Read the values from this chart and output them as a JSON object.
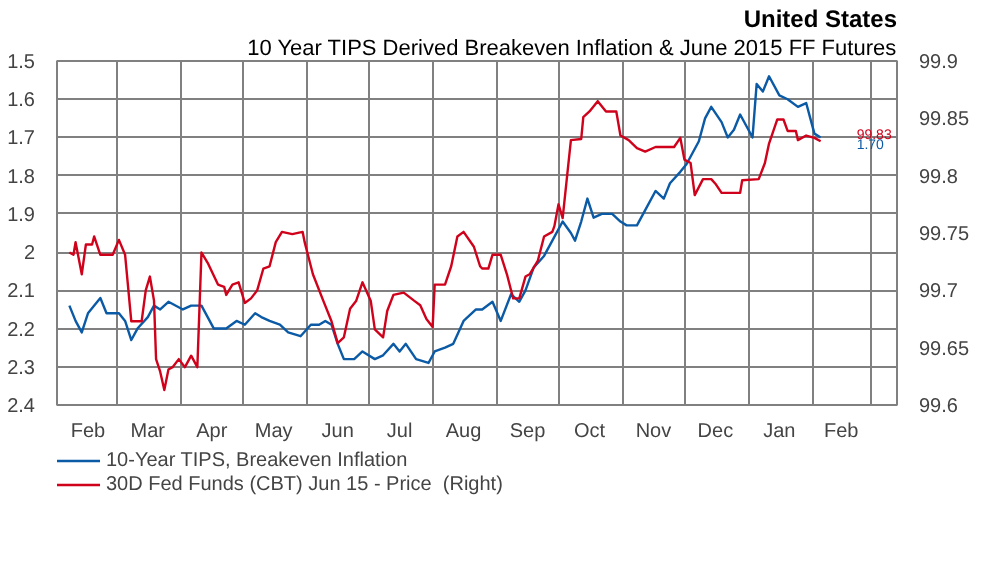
{
  "chart_data": {
    "type": "line",
    "title": "United States",
    "subtitle": "10 Year TIPS Derived Breakeven Inflation & June 2015 FF Futures",
    "series": [
      {
        "name": "10-Year TIPS, Breakeven Inflation",
        "color": "#0b5aa6",
        "x": [
          "2014-02-06",
          "2014-02-09",
          "2014-02-12",
          "2014-02-15",
          "2014-02-21",
          "2014-02-24",
          "2014-03-02",
          "2014-03-05",
          "2014-03-08",
          "2014-03-11",
          "2014-03-16",
          "2014-03-19",
          "2014-03-22",
          "2014-03-26",
          "2014-04-02",
          "2014-04-06",
          "2014-04-11",
          "2014-04-17",
          "2014-04-23",
          "2014-04-28",
          "2014-05-02",
          "2014-05-07",
          "2014-05-10",
          "2014-05-14",
          "2014-05-19",
          "2014-05-23",
          "2014-05-29",
          "2014-06-03",
          "2014-06-07",
          "2014-06-10",
          "2014-06-13",
          "2014-06-16",
          "2014-06-19",
          "2014-06-24",
          "2014-06-28",
          "2014-07-04",
          "2014-07-08",
          "2014-07-13",
          "2014-07-16",
          "2014-07-19",
          "2014-07-24",
          "2014-07-30",
          "2014-08-02",
          "2014-08-07",
          "2014-08-11",
          "2014-08-16",
          "2014-08-22",
          "2014-08-25",
          "2014-08-30",
          "2014-09-03",
          "2014-09-08",
          "2014-09-12",
          "2014-09-15",
          "2014-09-19",
          "2014-09-24",
          "2014-09-28",
          "2014-10-03",
          "2014-10-07",
          "2014-10-09",
          "2014-10-12",
          "2014-10-15",
          "2014-10-18",
          "2014-10-22",
          "2014-10-27",
          "2014-10-31",
          "2014-11-03",
          "2014-11-08",
          "2014-11-12",
          "2014-11-17",
          "2014-11-21",
          "2014-11-24",
          "2014-11-29",
          "2014-12-02",
          "2014-12-05",
          "2014-12-08",
          "2014-12-11",
          "2014-12-14",
          "2014-12-19",
          "2014-12-22",
          "2014-12-25",
          "2014-12-28",
          "2015-01-01",
          "2015-01-03",
          "2015-01-05",
          "2015-01-08",
          "2015-01-11",
          "2015-01-16",
          "2015-01-20",
          "2015-01-25",
          "2015-01-29",
          "2015-01-31",
          "2015-02-02",
          "2015-02-05"
        ],
        "values": [
          2.14,
          2.18,
          2.21,
          2.16,
          2.12,
          2.16,
          2.16,
          2.18,
          2.23,
          2.2,
          2.17,
          2.14,
          2.15,
          2.13,
          2.15,
          2.14,
          2.14,
          2.2,
          2.2,
          2.18,
          2.19,
          2.16,
          2.17,
          2.18,
          2.19,
          2.21,
          2.22,
          2.19,
          2.19,
          2.18,
          2.19,
          2.24,
          2.28,
          2.28,
          2.26,
          2.28,
          2.27,
          2.24,
          2.26,
          2.24,
          2.28,
          2.29,
          2.26,
          2.25,
          2.24,
          2.18,
          2.15,
          2.15,
          2.13,
          2.18,
          2.11,
          2.13,
          2.1,
          2.04,
          2.01,
          1.97,
          1.92,
          1.95,
          1.97,
          1.92,
          1.86,
          1.91,
          1.9,
          1.9,
          1.92,
          1.93,
          1.93,
          1.89,
          1.84,
          1.86,
          1.82,
          1.79,
          1.77,
          1.74,
          1.71,
          1.65,
          1.62,
          1.66,
          1.7,
          1.68,
          1.64,
          1.68,
          1.7,
          1.56,
          1.58,
          1.54,
          1.59,
          1.6,
          1.62,
          1.61,
          1.65,
          1.69,
          1.7
        ]
      },
      {
        "name": "30D Fed Funds (CBT) Jun 15 - Price  (Right)",
        "color": "#d0021b",
        "axis": "y2",
        "x": [
          "2014-02-06",
          "2014-02-08",
          "2014-02-09",
          "2014-02-12",
          "2014-02-14",
          "2014-02-17",
          "2014-02-18",
          "2014-02-21",
          "2014-02-27",
          "2014-03-02",
          "2014-03-05",
          "2014-03-08",
          "2014-03-13",
          "2014-03-15",
          "2014-03-17",
          "2014-03-19",
          "2014-03-20",
          "2014-03-22",
          "2014-03-24",
          "2014-03-26",
          "2014-03-28",
          "2014-03-31",
          "2014-04-03",
          "2014-04-06",
          "2014-04-09",
          "2014-04-11",
          "2014-04-14",
          "2014-04-19",
          "2014-04-22",
          "2014-04-23",
          "2014-04-26",
          "2014-04-29",
          "2014-05-02",
          "2014-05-05",
          "2014-05-08",
          "2014-05-11",
          "2014-05-14",
          "2014-05-17",
          "2014-05-20",
          "2014-05-25",
          "2014-05-30",
          "2014-05-31",
          "2014-06-04",
          "2014-06-09",
          "2014-06-13",
          "2014-06-16",
          "2014-06-19",
          "2014-06-22",
          "2014-06-25",
          "2014-06-28",
          "2014-07-02",
          "2014-07-04",
          "2014-07-08",
          "2014-07-10",
          "2014-07-13",
          "2014-07-18",
          "2014-07-23",
          "2014-07-26",
          "2014-07-29",
          "2014-08-01",
          "2014-08-02",
          "2014-08-07",
          "2014-08-10",
          "2014-08-13",
          "2014-08-16",
          "2014-08-21",
          "2014-08-24",
          "2014-08-25",
          "2014-08-28",
          "2014-08-30",
          "2014-09-03",
          "2014-09-06",
          "2014-09-09",
          "2014-09-12",
          "2014-09-15",
          "2014-09-17",
          "2014-09-21",
          "2014-09-24",
          "2014-09-28",
          "2014-09-29",
          "2014-10-01",
          "2014-10-03",
          "2014-10-05",
          "2014-10-07",
          "2014-10-12",
          "2014-10-13",
          "2014-10-16",
          "2014-10-20",
          "2014-10-24",
          "2014-10-29",
          "2014-10-31",
          "2014-11-04",
          "2014-11-08",
          "2014-11-12",
          "2014-11-17",
          "2014-11-21",
          "2014-11-26",
          "2014-11-29",
          "2014-12-01",
          "2014-12-04",
          "2014-12-06",
          "2014-12-10",
          "2014-12-14",
          "2014-12-16",
          "2014-12-19",
          "2014-12-28",
          "2014-12-29",
          "2015-01-06",
          "2015-01-09",
          "2015-01-11",
          "2015-01-15",
          "2015-01-18",
          "2015-01-20",
          "2015-01-24",
          "2015-01-25",
          "2015-01-29",
          "2015-02-02",
          "2015-02-05"
        ],
        "values": [
          99.733,
          99.731,
          99.742,
          99.714,
          99.74,
          99.74,
          99.747,
          99.731,
          99.731,
          99.744,
          99.731,
          99.673,
          99.673,
          99.7,
          99.712,
          99.691,
          99.64,
          99.629,
          99.613,
          99.631,
          99.633,
          99.64,
          99.633,
          99.643,
          99.633,
          99.733,
          99.724,
          99.705,
          99.703,
          99.696,
          99.705,
          99.707,
          99.689,
          99.693,
          99.7,
          99.719,
          99.721,
          99.742,
          99.751,
          99.749,
          99.751,
          99.742,
          99.714,
          99.691,
          99.673,
          99.654,
          99.659,
          99.684,
          99.691,
          99.707,
          99.691,
          99.666,
          99.659,
          99.682,
          99.696,
          99.698,
          99.691,
          99.687,
          99.675,
          99.668,
          99.705,
          99.705,
          99.721,
          99.747,
          99.751,
          99.738,
          99.721,
          99.719,
          99.719,
          99.731,
          99.731,
          99.714,
          99.693,
          99.693,
          99.712,
          99.714,
          99.726,
          99.747,
          99.751,
          99.756,
          99.775,
          99.763,
          99.797,
          99.831,
          99.832,
          99.851,
          99.856,
          99.865,
          99.856,
          99.856,
          99.835,
          99.831,
          99.824,
          99.821,
          99.825,
          99.825,
          99.825,
          99.833,
          99.814,
          99.811,
          99.783,
          99.797,
          99.797,
          99.793,
          99.785,
          99.785,
          99.796,
          99.797,
          99.811,
          99.828,
          99.849,
          99.849,
          99.839,
          99.839,
          99.831,
          99.835,
          99.833,
          99.83
        ]
      }
    ],
    "xlim": [
      "2014-01-31",
      "2015-03-14"
    ],
    "xticks": [
      {
        "value": "2014-02-15",
        "label": "Feb"
      },
      {
        "value": "2014-03-16",
        "label": "Mar"
      },
      {
        "value": "2014-04-16",
        "label": "Apr"
      },
      {
        "value": "2014-05-16",
        "label": "May"
      },
      {
        "value": "2014-06-16",
        "label": "Jun"
      },
      {
        "value": "2014-07-16",
        "label": "Jul"
      },
      {
        "value": "2014-08-16",
        "label": "Aug"
      },
      {
        "value": "2014-09-16",
        "label": "Sep"
      },
      {
        "value": "2014-10-16",
        "label": "Oct"
      },
      {
        "value": "2014-11-16",
        "label": "Nov"
      },
      {
        "value": "2014-12-16",
        "label": "Dec"
      },
      {
        "value": "2015-01-16",
        "label": "Jan"
      },
      {
        "value": "2015-02-15",
        "label": "Feb"
      },
      {
        "value": "2014-03-01",
        "label": null
      },
      {
        "value": "2014-04-01",
        "label": null
      },
      {
        "value": "2014-05-01",
        "label": null
      },
      {
        "value": "2014-06-01",
        "label": null
      },
      {
        "value": "2014-07-01",
        "label": null
      },
      {
        "value": "2014-08-01",
        "label": null
      },
      {
        "value": "2014-09-01",
        "label": null
      },
      {
        "value": "2014-10-01",
        "label": null
      },
      {
        "value": "2014-11-01",
        "label": null
      },
      {
        "value": "2014-12-01",
        "label": null
      },
      {
        "value": "2015-01-01",
        "label": null
      },
      {
        "value": "2015-02-01",
        "label": null
      },
      {
        "value": "2015-03-01",
        "label": null
      }
    ],
    "ylim": [
      2.4,
      1.5
    ],
    "yticks": [
      1.5,
      1.6,
      1.7,
      1.8,
      1.9,
      2,
      2.1,
      2.2,
      2.3,
      2.4
    ],
    "y2lim": [
      99.6,
      99.9
    ],
    "y2ticks": [
      99.6,
      99.65,
      99.7,
      99.75,
      99.8,
      99.85,
      99.9
    ],
    "annotations": [
      "99.83",
      "1.70"
    ],
    "grid": true,
    "legend": "bottom",
    "line_style": "solid",
    "marker": "none"
  }
}
